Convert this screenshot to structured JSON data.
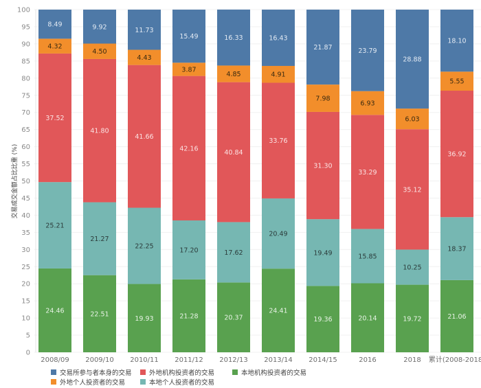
{
  "chart_data": {
    "type": "bar",
    "stacked": true,
    "title": "",
    "xlabel": "",
    "ylabel": "交易成交金额占比比重 (%)",
    "ylim": [
      0,
      100
    ],
    "yticks": [
      0,
      5,
      10,
      15,
      20,
      25,
      30,
      35,
      40,
      45,
      50,
      55,
      60,
      65,
      70,
      75,
      80,
      85,
      90,
      95,
      100
    ],
    "grid": true,
    "legend_position": "bottom",
    "categories": [
      "2008/09",
      "2009/10",
      "2010/11",
      "2011/12",
      "2012/13",
      "2013/14",
      "2014/15",
      "2016",
      "2018",
      "累计(2008-2018)"
    ],
    "series": [
      {
        "name": "本地机构投资者的交易",
        "color": "#59a14f",
        "label_color": "#e8f3e6",
        "values": [
          24.46,
          22.51,
          19.93,
          21.28,
          20.37,
          24.41,
          19.36,
          20.14,
          19.72,
          21.06
        ]
      },
      {
        "name": "本地个人投资者的交易",
        "color": "#76b7b2",
        "label_color": "#2b3b3a",
        "values": [
          25.21,
          21.27,
          22.25,
          17.2,
          17.62,
          20.49,
          19.49,
          15.85,
          10.25,
          18.37
        ]
      },
      {
        "name": "外地机构投资者的交易",
        "color": "#e15759",
        "label_color": "#fbe3e3",
        "values": [
          37.52,
          41.8,
          41.66,
          42.16,
          40.84,
          33.76,
          31.3,
          33.29,
          35.12,
          36.92
        ]
      },
      {
        "name": "外地个人投资者的交易",
        "color": "#f28e2b",
        "label_color": "#3a2a10",
        "values": [
          4.32,
          4.5,
          4.43,
          3.87,
          4.85,
          4.91,
          7.98,
          6.93,
          6.03,
          5.55
        ]
      },
      {
        "name": "交易所参与者本身的交易",
        "color": "#4e79a7",
        "label_color": "#e3eaf3",
        "values": [
          8.49,
          9.92,
          11.73,
          15.49,
          16.33,
          16.43,
          21.87,
          23.79,
          28.88,
          18.1
        ]
      }
    ]
  },
  "legend": {
    "items": [
      {
        "name": "交易所参与者本身的交易",
        "color": "#4e79a7"
      },
      {
        "name": "外地机构投资者的交易",
        "color": "#e15759"
      },
      {
        "name": "本地机构投资者的交易",
        "color": "#59a14f"
      },
      {
        "name": "外地个人投资者的交易",
        "color": "#f28e2b"
      },
      {
        "name": "本地个人投资者的交易",
        "color": "#76b7b2"
      }
    ]
  }
}
